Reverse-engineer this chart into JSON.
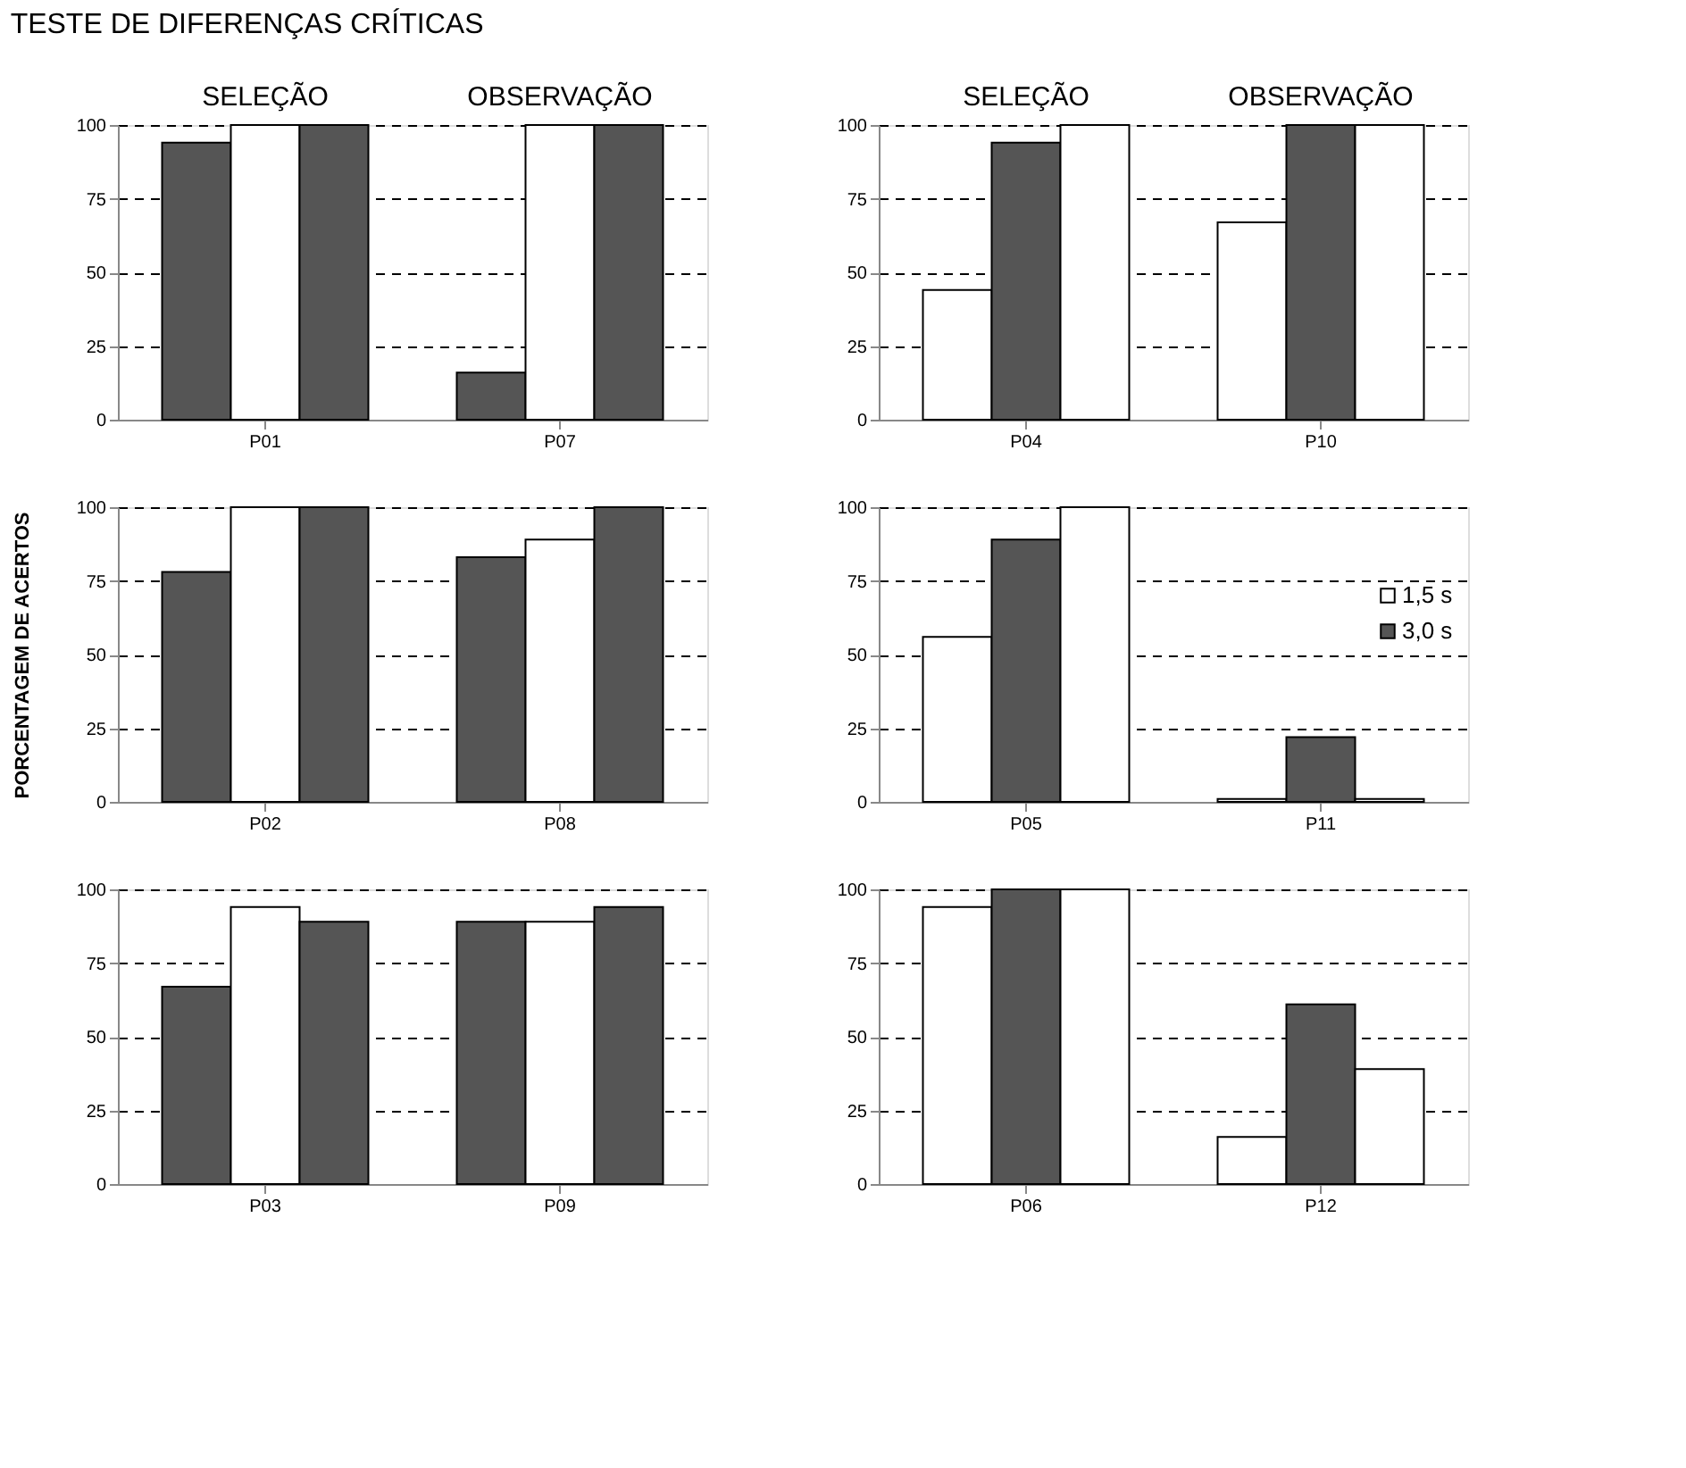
{
  "chart_data": [
    {
      "type": "bar",
      "title": "TESTE DE DIFERENÇAS CRÍTICAS",
      "categories": [
        "P01",
        "P07"
      ],
      "annotations": [
        "SELEÇÃO",
        "OBSERVAÇÃO"
      ],
      "ylim": [
        0,
        100
      ],
      "yticks": [
        0,
        25,
        50,
        75,
        100
      ],
      "grid": "y",
      "series": [
        {
          "color": "#555555",
          "values": [
            94,
            16
          ]
        },
        {
          "color": "#ffffff",
          "values": [
            100,
            100
          ]
        },
        {
          "color": "#555555",
          "values": [
            100,
            100
          ]
        }
      ]
    },
    {
      "type": "bar",
      "categories": [
        "P04",
        "P10"
      ],
      "annotations": [
        "SELEÇÃO",
        "OBSERVAÇÃO"
      ],
      "ylim": [
        0,
        100
      ],
      "yticks": [
        0,
        25,
        50,
        75,
        100
      ],
      "grid": "y",
      "series": [
        {
          "color": "#ffffff",
          "values": [
            44,
            67
          ]
        },
        {
          "color": "#555555",
          "values": [
            94,
            100
          ]
        },
        {
          "color": "#ffffff",
          "values": [
            100,
            100
          ]
        }
      ]
    },
    {
      "type": "bar",
      "categories": [
        "P02",
        "P08"
      ],
      "ylabel": "PORCENTAGEM DE ACERTOS",
      "ylim": [
        0,
        100
      ],
      "yticks": [
        0,
        25,
        50,
        75,
        100
      ],
      "grid": "y",
      "series": [
        {
          "color": "#555555",
          "values": [
            78,
            83
          ]
        },
        {
          "color": "#ffffff",
          "values": [
            100,
            89
          ]
        },
        {
          "color": "#555555",
          "values": [
            100,
            100
          ]
        }
      ]
    },
    {
      "type": "bar",
      "categories": [
        "P05",
        "P11"
      ],
      "ylim": [
        0,
        100
      ],
      "yticks": [
        0,
        25,
        50,
        75,
        100
      ],
      "grid": "y",
      "legend": "right",
      "series": [
        {
          "name": "1,5 s",
          "color": "#ffffff",
          "values": [
            56,
            1
          ]
        },
        {
          "name": "3,0 s",
          "color": "#555555",
          "values": [
            89,
            22
          ]
        },
        {
          "color": "#ffffff",
          "values": [
            100,
            1
          ]
        }
      ]
    },
    {
      "type": "bar",
      "categories": [
        "P03",
        "P09"
      ],
      "ylim": [
        0,
        100
      ],
      "yticks": [
        0,
        25,
        50,
        75,
        100
      ],
      "grid": "y",
      "series": [
        {
          "color": "#555555",
          "values": [
            67,
            89
          ]
        },
        {
          "color": "#ffffff",
          "values": [
            94,
            89
          ]
        },
        {
          "color": "#555555",
          "values": [
            89,
            94
          ]
        }
      ]
    },
    {
      "type": "bar",
      "categories": [
        "P06",
        "P12"
      ],
      "ylim": [
        0,
        100
      ],
      "yticks": [
        0,
        25,
        50,
        75,
        100
      ],
      "grid": "y",
      "series": [
        {
          "color": "#ffffff",
          "values": [
            94,
            16
          ]
        },
        {
          "color": "#555555",
          "values": [
            100,
            61
          ]
        },
        {
          "color": "#ffffff",
          "values": [
            100,
            39
          ]
        }
      ]
    }
  ]
}
